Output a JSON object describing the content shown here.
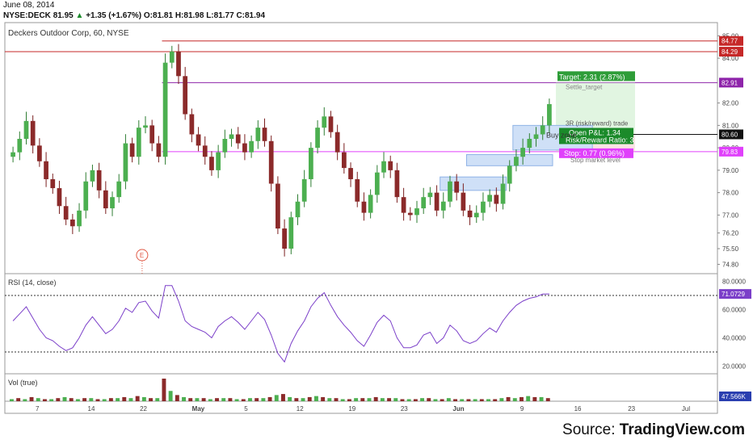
{
  "header": {
    "date": "June 08, 2014",
    "symbol": "NYSE:DECK",
    "last": "81.95",
    "change": "+1.35 (+1.67%)",
    "open": "O:81.81",
    "high": "H:81.98",
    "low": "L:81.77",
    "close": "C:81.94"
  },
  "source": {
    "prefix": "Source: ",
    "name": "TradingView.com"
  },
  "chart_data": {
    "type": "candlestick",
    "title": "Deckers Outdoor Corp, 60, NYSE",
    "price_axis": {
      "ticks": [
        "85.00",
        "84.00",
        "82.00",
        "81.00",
        "80.00",
        "79.00",
        "78.00",
        "77.00",
        "76.20",
        "75.50",
        "74.80"
      ],
      "ylim": [
        74.6,
        85.3
      ]
    },
    "x_axis": {
      "ticks": [
        "7",
        "14",
        "22",
        "May",
        "5",
        "12",
        "19",
        "23",
        "Jun",
        "9",
        "16",
        "23",
        "Jul"
      ]
    },
    "price_labels": [
      {
        "value": 84.77,
        "text": "84.77",
        "color": "#c62828"
      },
      {
        "value": 84.29,
        "text": "84.29",
        "color": "#c62828"
      },
      {
        "value": 82.91,
        "text": "82.91",
        "color": "#8e24aa"
      },
      {
        "value": 80.6,
        "text": "80.60",
        "color": "#111111"
      },
      {
        "value": 79.83,
        "text": "79.83",
        "color": "#e040fb"
      }
    ],
    "horizontal_lines": [
      {
        "value": 84.77,
        "color": "#c62828"
      },
      {
        "value": 84.29,
        "color": "#c62828"
      },
      {
        "value": 82.91,
        "color": "#8e24aa"
      },
      {
        "value": 79.83,
        "color": "#e040fb"
      }
    ],
    "annotations": {
      "target_label": "Target: 2.31 (2.87%)",
      "target_sub": "Settle_target",
      "trade_label": "3R (risk/reward) trade",
      "open_pl": "Open P&L: 1.34",
      "rr_ratio": "Risk/Reward Ratio: 3",
      "stop_label": "Stop: 0.77 (0.96%)",
      "stop_sub": "Stop market level",
      "buy_zone": "Buy zone",
      "earnings_marker": "E"
    },
    "closes": [
      79.8,
      80.4,
      81.2,
      80.1,
      79.4,
      78.6,
      78.2,
      77.4,
      76.8,
      76.5,
      77.2,
      78.5,
      79.0,
      78.1,
      77.3,
      77.8,
      78.5,
      80.2,
      79.6,
      80.9,
      81.0,
      80.2,
      79.6,
      83.8,
      84.3,
      83.2,
      81.5,
      80.6,
      80.1,
      79.6,
      79.0,
      79.8,
      80.4,
      80.6,
      80.2,
      79.8,
      80.3,
      80.9,
      80.3,
      78.4,
      76.4,
      75.5,
      76.9,
      77.6,
      78.6,
      80.0,
      80.9,
      81.4,
      80.7,
      79.8,
      79.1,
      78.6,
      77.6,
      77.1,
      77.9,
      78.9,
      79.4,
      79.0,
      77.8,
      77.1,
      77.0,
      77.3,
      77.8,
      78.0,
      77.2,
      77.6,
      78.5,
      78.0,
      77.2,
      76.9,
      77.1,
      77.6,
      77.9,
      77.5,
      78.4,
      79.2,
      79.6,
      80.0,
      80.4,
      80.6,
      81.0,
      81.95
    ],
    "rsi": {
      "label": "RSI (14, close)",
      "ticks": [
        "80.0000",
        "60.0000",
        "40.0000",
        "20.0000"
      ],
      "ylim": [
        18,
        82
      ],
      "upper": 70,
      "lower": 30,
      "last_label": "71.0729",
      "values": [
        52,
        57,
        62,
        54,
        46,
        40,
        38,
        34,
        31,
        33,
        40,
        49,
        55,
        49,
        43,
        46,
        52,
        61,
        58,
        65,
        66,
        59,
        54,
        77,
        77,
        66,
        52,
        48,
        46,
        44,
        40,
        48,
        52,
        55,
        51,
        46,
        52,
        58,
        53,
        42,
        29,
        23,
        36,
        45,
        52,
        62,
        68,
        72,
        63,
        55,
        49,
        44,
        38,
        34,
        42,
        51,
        56,
        52,
        40,
        33,
        33,
        35,
        42,
        44,
        36,
        40,
        49,
        45,
        38,
        36,
        38,
        43,
        47,
        44,
        52,
        58,
        63,
        66,
        68,
        69,
        71,
        71.07
      ]
    },
    "volume": {
      "label": "Vol (true)",
      "last_label": "47.566K",
      "values": [
        2,
        3,
        2,
        4,
        3,
        2,
        2,
        3,
        4,
        3,
        2,
        3,
        3,
        2,
        2,
        3,
        3,
        4,
        3,
        5,
        4,
        3,
        3,
        22,
        10,
        6,
        4,
        3,
        3,
        3,
        2,
        3,
        3,
        3,
        2,
        2,
        3,
        3,
        3,
        4,
        6,
        7,
        4,
        3,
        3,
        4,
        5,
        4,
        3,
        3,
        2,
        2,
        3,
        3,
        3,
        4,
        3,
        3,
        3,
        2,
        2,
        2,
        3,
        3,
        2,
        2,
        3,
        2,
        2,
        2,
        2,
        2,
        2,
        2,
        3,
        4,
        3,
        4,
        5,
        4,
        4,
        3
      ]
    }
  }
}
